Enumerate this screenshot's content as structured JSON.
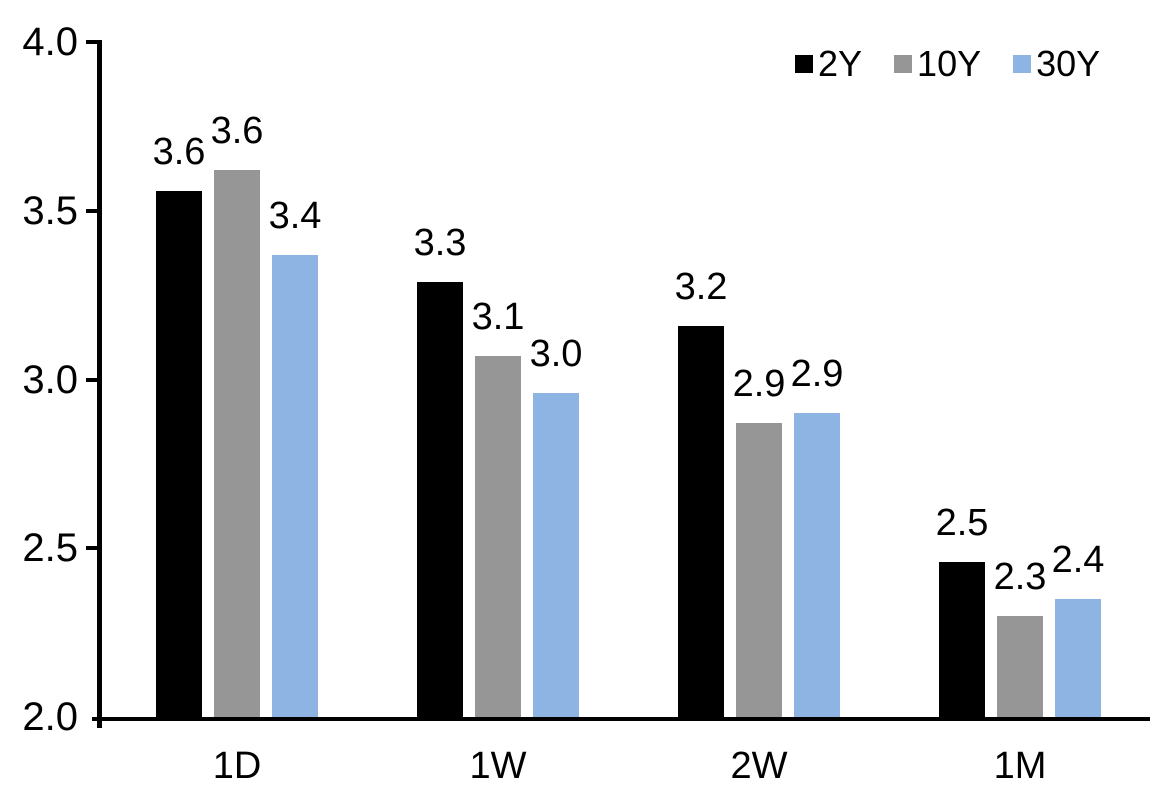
{
  "chart_data": {
    "type": "bar",
    "categories": [
      "1D",
      "1W",
      "2W",
      "1M"
    ],
    "series": [
      {
        "name": "2Y",
        "color": "#000000",
        "values": [
          3.6,
          3.3,
          3.2,
          2.5
        ],
        "bar_values": [
          3.56,
          3.29,
          3.16,
          2.46
        ],
        "data_labels": [
          "3.6",
          "3.3",
          "3.2",
          "2.5"
        ]
      },
      {
        "name": "10Y",
        "color": "#969696",
        "values": [
          3.6,
          3.1,
          2.9,
          2.3
        ],
        "bar_values": [
          3.62,
          3.07,
          2.87,
          2.3
        ],
        "data_labels": [
          "3.6",
          "3.1",
          "2.9",
          "2.3"
        ]
      },
      {
        "name": "30Y",
        "color": "#8EB4E3",
        "values": [
          3.4,
          3.0,
          2.9,
          2.4
        ],
        "bar_values": [
          3.37,
          2.96,
          2.9,
          2.35
        ],
        "data_labels": [
          "3.4",
          "3.0",
          "2.9",
          "2.4"
        ]
      }
    ],
    "title": "",
    "xlabel": "",
    "ylabel": "",
    "y_axis": {
      "min": 2.0,
      "max": 4.0,
      "tick_interval": 0.5,
      "ticks": [
        {
          "value": 4.0,
          "label": "4.0"
        },
        {
          "value": 3.5,
          "label": "3.5"
        },
        {
          "value": 3.0,
          "label": "3.0"
        },
        {
          "value": 2.5,
          "label": "2.5"
        },
        {
          "value": 2.0,
          "label": "2.0"
        }
      ]
    },
    "legend": {
      "position": "top-right",
      "entries": [
        "2Y",
        "10Y",
        "30Y"
      ]
    },
    "grid": false,
    "colors": {
      "axis": "#000000",
      "text": "#000000",
      "background": "#FFFFFF"
    }
  }
}
